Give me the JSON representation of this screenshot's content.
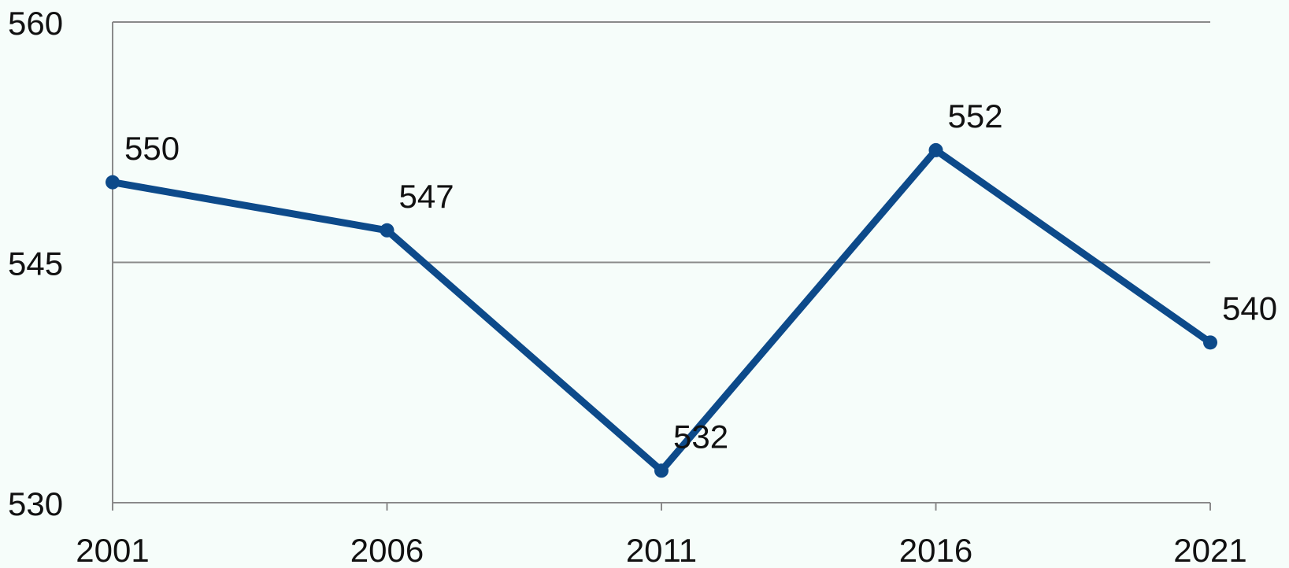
{
  "chart_data": {
    "type": "line",
    "categories": [
      "2001",
      "2006",
      "2011",
      "2016",
      "2021"
    ],
    "series": [
      {
        "color": "#0d4a8a",
        "values": [
          550,
          547,
          532,
          552,
          540
        ]
      }
    ],
    "ylim": [
      530,
      560
    ],
    "yticks": [
      530,
      545,
      560
    ],
    "grid": true
  }
}
